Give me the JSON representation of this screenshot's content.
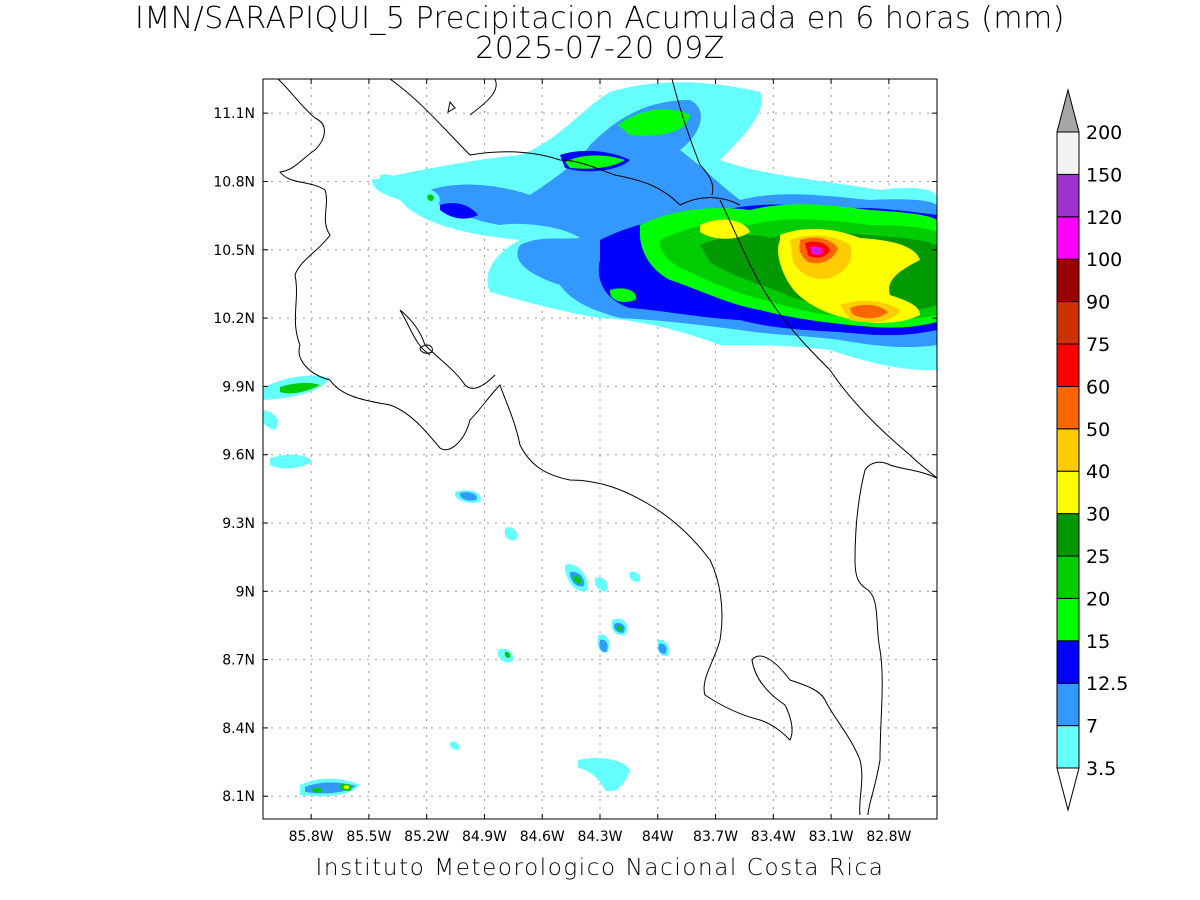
{
  "header": {
    "title": "IMN/SARAPIQUI_5 Precipitacion Acumulada en 6 horas (mm)",
    "subtitle": "2025-07-20 09Z"
  },
  "map": {
    "lat_ticks": [
      "11.1N",
      "10.8N",
      "10.5N",
      "10.2N",
      "9.9N",
      "9.6N",
      "9.3N",
      "9N",
      "8.7N",
      "8.4N",
      "8.1N"
    ],
    "lon_ticks": [
      "85.8W",
      "85.5W",
      "85.2W",
      "84.9W",
      "84.6W",
      "84.3W",
      "84W",
      "83.7W",
      "83.4W",
      "83.1W",
      "82.8W"
    ],
    "extent": {
      "lon_min": -86.05,
      "lon_max": -82.55,
      "lat_min": 8.0,
      "lat_max": 11.25
    }
  },
  "legend": {
    "unit": "mm",
    "levels": [
      {
        "label": "3.5",
        "color": "#66ffff"
      },
      {
        "label": "7",
        "color": "#3399ff"
      },
      {
        "label": "12.5",
        "color": "#0000ff"
      },
      {
        "label": "15",
        "color": "#00ff00"
      },
      {
        "label": "20",
        "color": "#00cc00"
      },
      {
        "label": "25",
        "color": "#009900"
      },
      {
        "label": "30",
        "color": "#ffff00"
      },
      {
        "label": "40",
        "color": "#ffcc00"
      },
      {
        "label": "50",
        "color": "#ff6600"
      },
      {
        "label": "60",
        "color": "#ff0000"
      },
      {
        "label": "75",
        "color": "#cc3300"
      },
      {
        "label": "90",
        "color": "#990000"
      },
      {
        "label": "100",
        "color": "#ff00ff"
      },
      {
        "label": "120",
        "color": "#9933cc"
      },
      {
        "label": "150",
        "color": "#f2f2f2"
      },
      {
        "label": "200",
        "color": "#a6a6a6"
      }
    ]
  },
  "footer": {
    "credit": "Instituto Meteorologico Nacional Costa Rica"
  }
}
